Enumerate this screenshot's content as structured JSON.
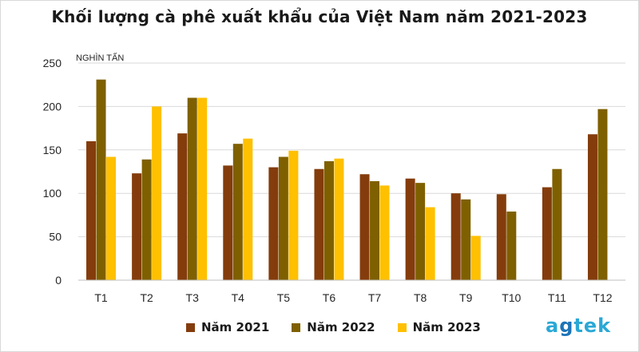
{
  "colors": {
    "s2021": "#843c0c",
    "s2022": "#7f6000",
    "s2023": "#ffc000",
    "grid": "#d9d9d9",
    "axis": "#bfbfbf",
    "text": "#262626",
    "brand": "#2aa8d6"
  },
  "brand": {
    "text": "agtek"
  },
  "chart_data": {
    "type": "bar",
    "title": "Khối lượng cà phê xuất khẩu của Việt Nam năm 2021-2023",
    "ylabel": "NGHÌN TẤN",
    "xlabel": "",
    "ylim": [
      0,
      250
    ],
    "yticks": [
      "0",
      "50",
      "100",
      "150",
      "200",
      "250"
    ],
    "grid": true,
    "legend_position": "bottom",
    "categories": [
      "T1",
      "T2",
      "T3",
      "T4",
      "T5",
      "T6",
      "T7",
      "T8",
      "T9",
      "T10",
      "T11",
      "T12"
    ],
    "series": [
      {
        "name": "Năm 2021",
        "values": [
          160,
          123,
          169,
          132,
          130,
          128,
          122,
          117,
          100,
          99,
          107,
          168
        ]
      },
      {
        "name": "Năm 2022",
        "values": [
          231,
          139,
          210,
          157,
          142,
          137,
          114,
          112,
          93,
          79,
          128,
          197
        ]
      },
      {
        "name": "Năm 2023",
        "values": [
          142,
          200,
          210,
          163,
          149,
          140,
          109,
          84,
          51,
          null,
          null,
          null
        ]
      }
    ]
  }
}
